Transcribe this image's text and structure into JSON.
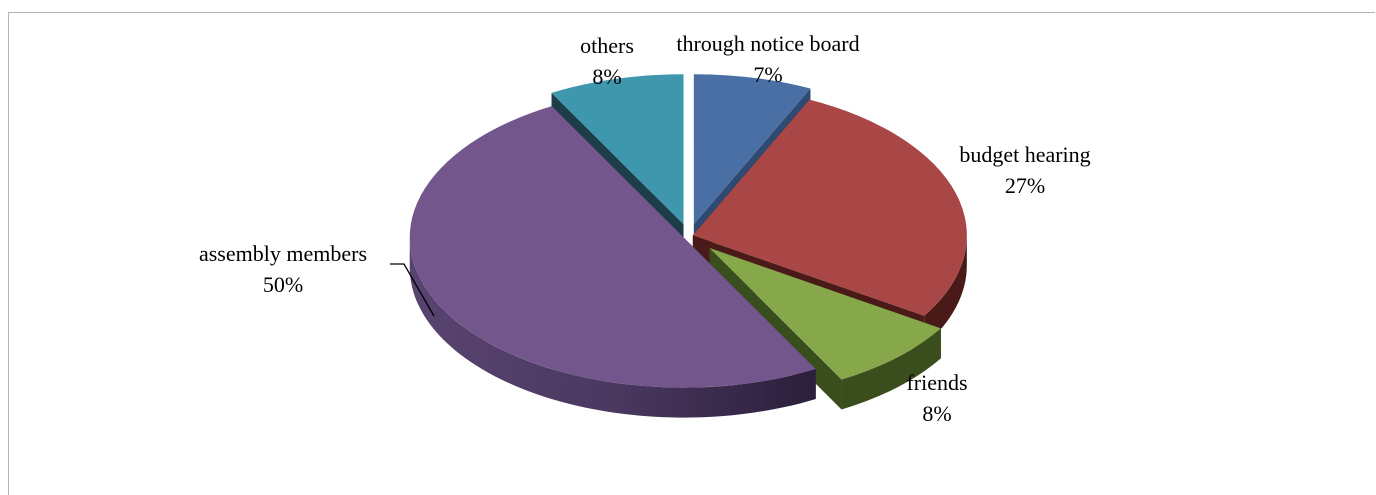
{
  "chart_data": {
    "type": "pie",
    "title": "",
    "style": "3d-exploded",
    "slices": [
      {
        "label": "through notice board",
        "value": 7,
        "value_label": "7%",
        "color": "#4A6FA5",
        "side_color": "#2F4A72"
      },
      {
        "label": "budget hearing",
        "value": 27,
        "value_label": "27%",
        "color": "#A84745",
        "side_color": "#4A1A19"
      },
      {
        "label": "friends",
        "value": 8,
        "value_label": "8%",
        "color": "#86A84A",
        "side_color": "#3A4D1C"
      },
      {
        "label": "assembly members",
        "value": 50,
        "value_label": "50%",
        "color": "#72568C",
        "side_color": "#3E2C52"
      },
      {
        "label": "others",
        "value": 8,
        "value_label": "8%",
        "color": "#3F97AE",
        "side_color": "#1D3E48"
      }
    ]
  }
}
